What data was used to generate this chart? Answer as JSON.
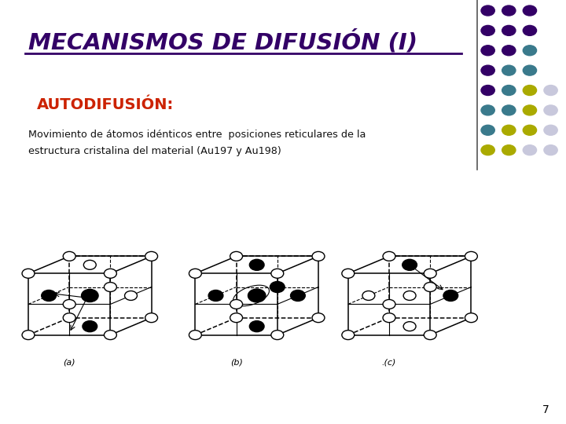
{
  "title": "MECANISMOS DE DIFUSIÓN (I)",
  "subtitle": "AUTODIFUSIÓN:",
  "body_line1": "Movimiento de átomos idénticos entre  posiciones reticulares de la",
  "body_line2": "estructura cristalina del material (Au197 y Au198)",
  "page_number": "7",
  "title_color": "#330066",
  "subtitle_color": "#CC2200",
  "body_color": "#111111",
  "bg_color": "#FFFFFF",
  "dot_colors": {
    "purple": "#330066",
    "teal": "#3A7A8C",
    "yellow": "#AAAA00",
    "light": "#C8C8DC"
  },
  "dot_grid_rows": [
    [
      "purple",
      "purple",
      "purple"
    ],
    [
      "purple",
      "purple",
      "purple"
    ],
    [
      "purple",
      "purple",
      "teal"
    ],
    [
      "purple",
      "teal",
      "teal"
    ],
    [
      "purple",
      "teal",
      "yellow",
      "light"
    ],
    [
      "teal",
      "teal",
      "yellow",
      "light"
    ],
    [
      "teal",
      "yellow",
      "yellow",
      "light"
    ],
    [
      "yellow",
      "yellow",
      "light",
      "light"
    ]
  ],
  "vline_x": 0.843
}
